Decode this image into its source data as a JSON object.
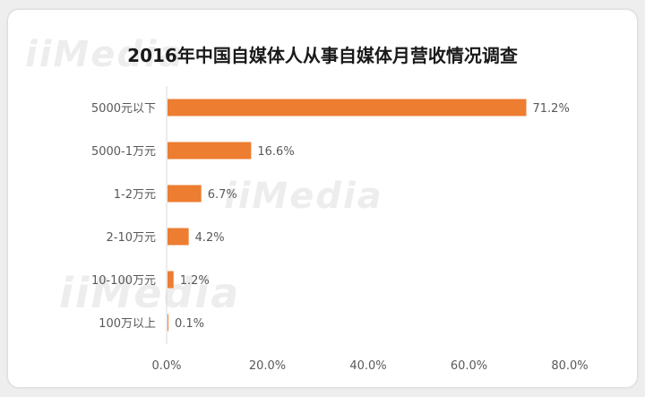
{
  "watermark": "iiMedia",
  "colors": {
    "bar": "#ed7d31",
    "axis": "#d9d9d9",
    "text": "#595959"
  },
  "chart_data": {
    "type": "bar",
    "orientation": "horizontal",
    "title": "2016年中国自媒体人从事自媒体月营收情况调查",
    "categories": [
      "5000元以下",
      "5000-1万元",
      "1-2万元",
      "2-10万元",
      "10-100万元",
      "100万以上"
    ],
    "values": [
      71.2,
      16.6,
      6.7,
      4.2,
      1.2,
      0.1
    ],
    "value_labels": [
      "71.2%",
      "16.6%",
      "6.7%",
      "4.2%",
      "1.2%",
      "0.1%"
    ],
    "xlim": [
      0,
      80
    ],
    "xticks": [
      0,
      20,
      40,
      60,
      80
    ],
    "xtick_labels": [
      "0.0%",
      "20.0%",
      "40.0%",
      "60.0%",
      "80.0%"
    ],
    "grid": false,
    "legend": "none"
  }
}
